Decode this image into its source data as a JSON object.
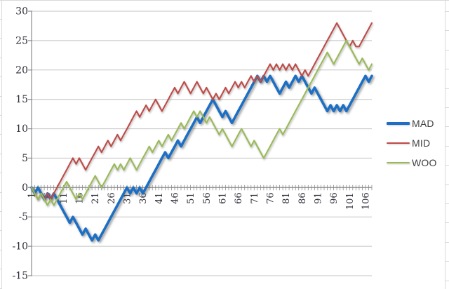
{
  "palette": {
    "background": "#FFFFFF",
    "gridline": "#C3C3C3",
    "axis_line": "#8C8C8C",
    "axis_label_text": "#2E2E38",
    "legend_text": "#3F3F3F",
    "spreadsheet_line": "#D9D9D9"
  },
  "legend": {
    "position": "right"
  },
  "chart_data": {
    "type": "line",
    "title": "",
    "xlabel": "",
    "ylabel": "",
    "x_count": 108,
    "x_tick_labels": [
      "1",
      "6",
      "11",
      "16",
      "21",
      "26",
      "31",
      "36",
      "41",
      "46",
      "51",
      "56",
      "61",
      "66",
      "71",
      "76",
      "81",
      "86",
      "91",
      "96",
      "101",
      "106"
    ],
    "x_tick_interval": 5,
    "ylim": [
      -15,
      30
    ],
    "y_tick_step": 5,
    "y_tick_labels": [
      "30",
      "25",
      "20",
      "15",
      "10",
      "5",
      "0",
      "-5",
      "-10",
      "-15"
    ],
    "grid": true,
    "legend_position": "right",
    "series": [
      {
        "name": "MAD",
        "color": "#1C6FC4",
        "width": 3.6,
        "shadow": "strong",
        "values": [
          0,
          -1,
          0,
          -1,
          -2,
          -1,
          -2,
          -1,
          -2,
          -3,
          -4,
          -5,
          -6,
          -5,
          -6,
          -7,
          -8,
          -7,
          -8,
          -9,
          -8,
          -9,
          -8,
          -7,
          -6,
          -5,
          -4,
          -3,
          -2,
          -1,
          0,
          -1,
          0,
          -1,
          0,
          -1,
          0,
          1,
          2,
          3,
          4,
          5,
          6,
          5,
          6,
          7,
          8,
          7,
          8,
          9,
          10,
          11,
          12,
          11,
          12,
          13,
          14,
          15,
          14,
          13,
          12,
          13,
          12,
          11,
          12,
          13,
          14,
          15,
          16,
          17,
          18,
          19,
          18,
          19,
          18,
          19,
          18,
          17,
          16,
          17,
          18,
          17,
          18,
          19,
          18,
          19,
          18,
          17,
          16,
          17,
          16,
          15,
          14,
          13,
          14,
          13,
          14,
          13,
          14,
          13,
          14,
          15,
          16,
          17,
          18,
          19,
          18,
          19
        ]
      },
      {
        "name": "MID",
        "color": "#BE4B48",
        "width": 2.1,
        "shadow": "soft",
        "values": [
          0,
          -1,
          -2,
          -1,
          -2,
          -1,
          -2,
          -1,
          0,
          1,
          2,
          3,
          4,
          5,
          4,
          5,
          4,
          3,
          4,
          5,
          6,
          7,
          6,
          7,
          8,
          7,
          8,
          9,
          8,
          9,
          10,
          11,
          12,
          13,
          12,
          13,
          14,
          13,
          14,
          15,
          14,
          13,
          14,
          15,
          16,
          17,
          16,
          17,
          18,
          17,
          16,
          17,
          18,
          17,
          16,
          17,
          16,
          15,
          16,
          15,
          16,
          17,
          16,
          17,
          18,
          17,
          18,
          17,
          18,
          19,
          18,
          19,
          18,
          19,
          20,
          21,
          20,
          21,
          20,
          21,
          20,
          21,
          20,
          21,
          20,
          19,
          20,
          19,
          20,
          21,
          22,
          23,
          24,
          25,
          26,
          27,
          28,
          27,
          26,
          25,
          24,
          25,
          24,
          24,
          25,
          26,
          27,
          28
        ]
      },
      {
        "name": "WOO",
        "color": "#9ABA57",
        "width": 2.1,
        "shadow": "soft",
        "values": [
          0,
          -1,
          -2,
          -1,
          -2,
          -3,
          -2,
          -3,
          -2,
          -1,
          0,
          1,
          0,
          -1,
          -2,
          -1,
          -2,
          -1,
          0,
          1,
          2,
          1,
          0,
          1,
          2,
          3,
          4,
          3,
          4,
          3,
          4,
          5,
          4,
          3,
          4,
          5,
          6,
          7,
          6,
          7,
          8,
          7,
          8,
          9,
          8,
          9,
          10,
          11,
          10,
          11,
          12,
          13,
          12,
          13,
          12,
          11,
          12,
          11,
          10,
          9,
          10,
          9,
          8,
          7,
          8,
          9,
          10,
          9,
          8,
          7,
          8,
          7,
          6,
          5,
          6,
          7,
          8,
          9,
          10,
          9,
          10,
          11,
          12,
          13,
          14,
          15,
          16,
          17,
          18,
          19,
          20,
          21,
          22,
          23,
          22,
          21,
          22,
          23,
          24,
          25,
          24,
          23,
          22,
          21,
          22,
          21,
          20,
          21
        ]
      }
    ]
  }
}
